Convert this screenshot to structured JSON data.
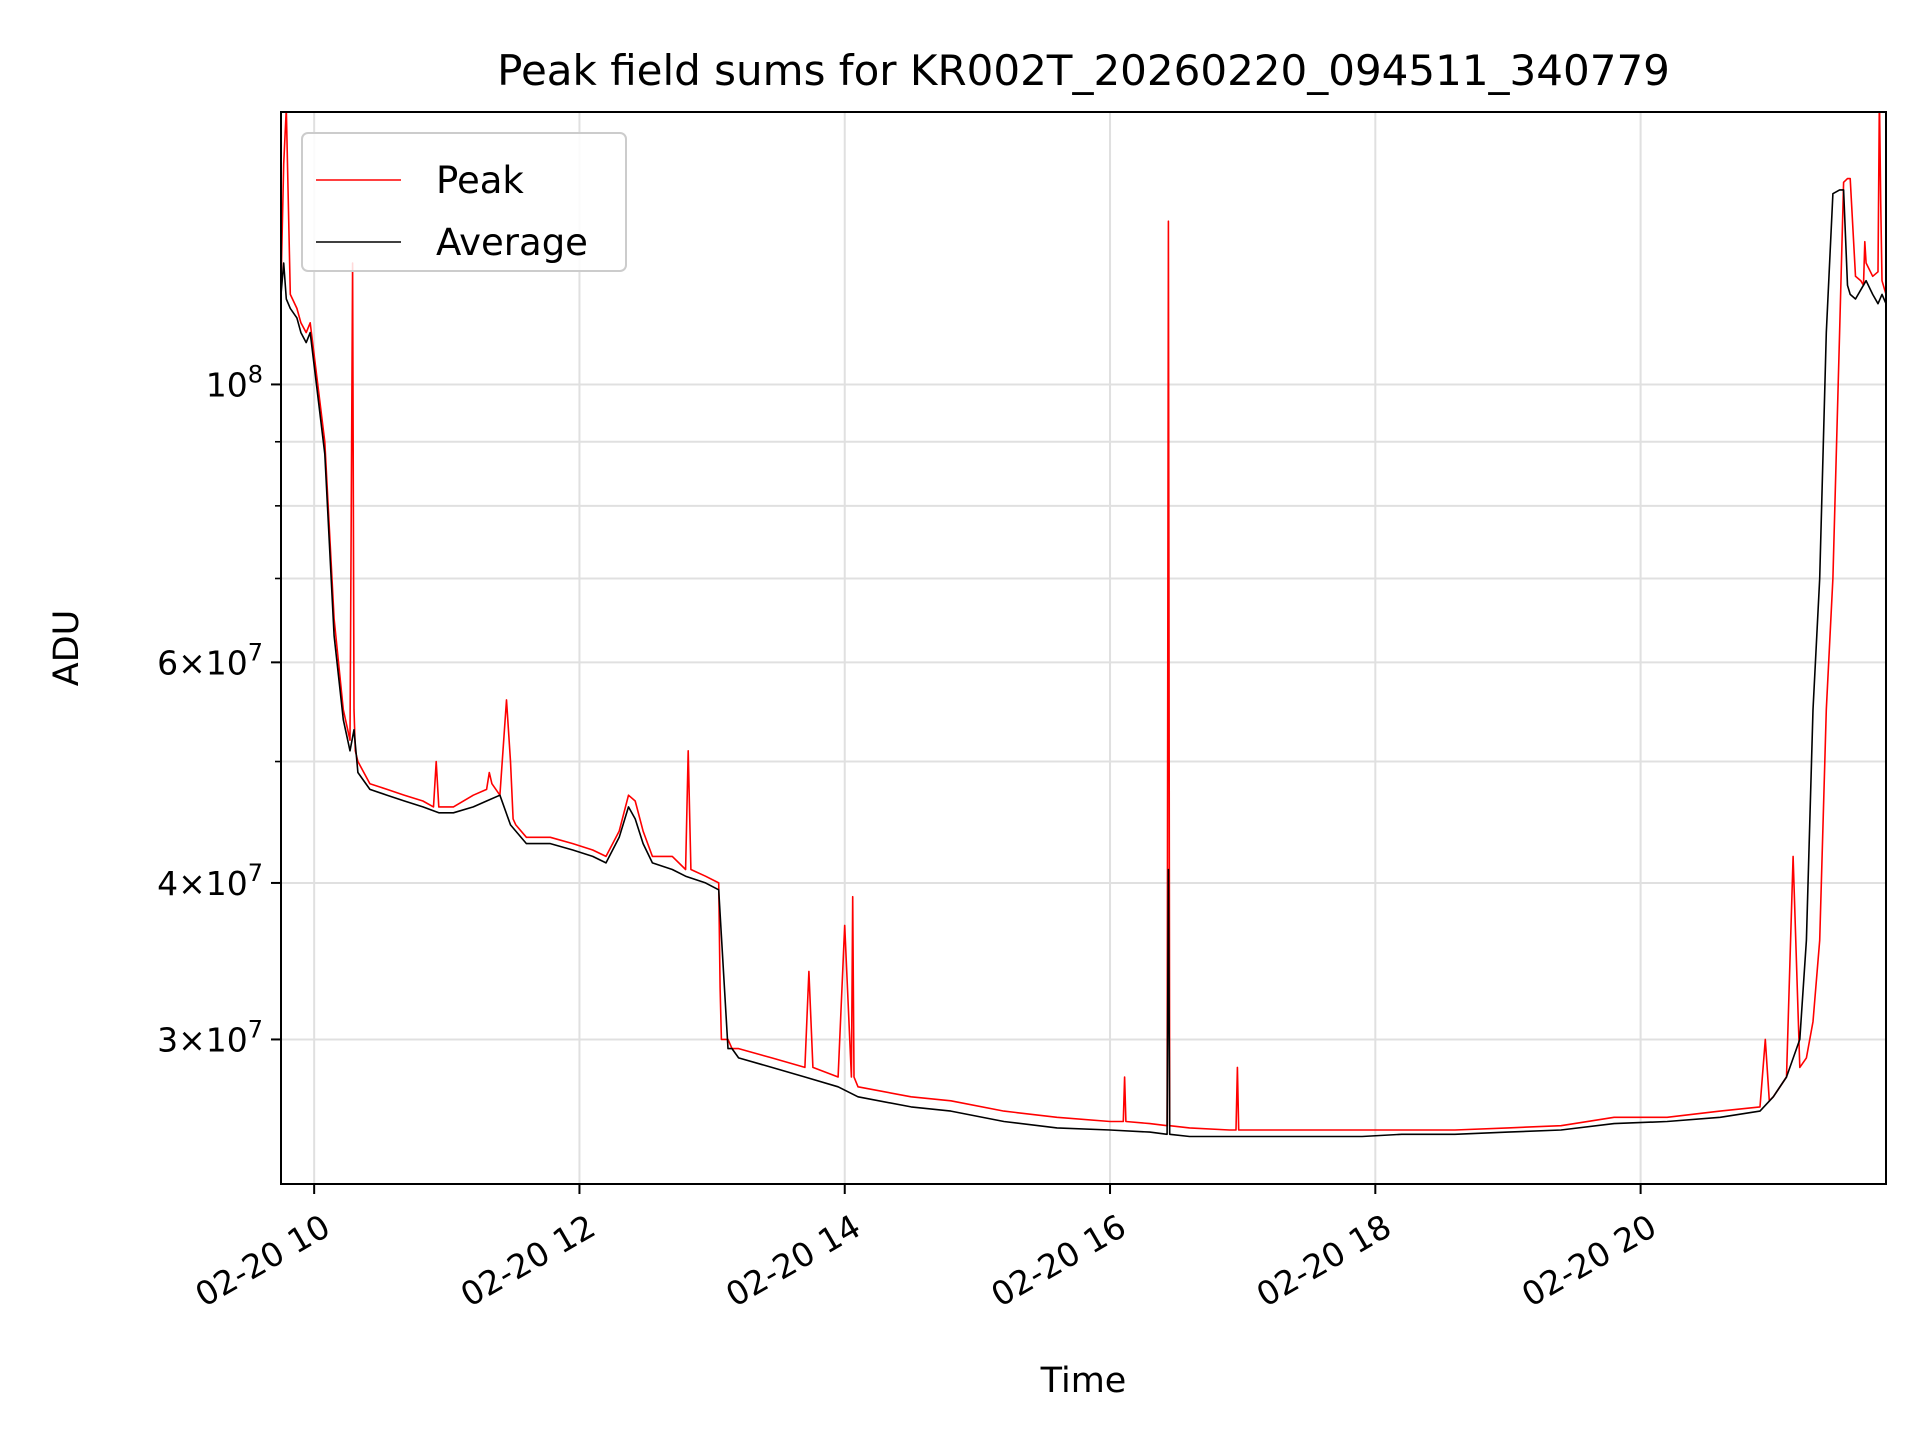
{
  "chart_data": {
    "type": "line",
    "title": "Peak field sums for KR002T_20260220_094511_340779",
    "xlabel": "Time",
    "ylabel": "ADU",
    "x_ticks": [
      "02-20 10",
      "02-20 12",
      "02-20 14",
      "02-20 16",
      "02-20 18",
      "02-20 20"
    ],
    "x_tick_hours": [
      10,
      12,
      14,
      16,
      18,
      20
    ],
    "xlim_hours": [
      9.75,
      21.85
    ],
    "y_scale": "log",
    "ylim": [
      23000000,
      165000000
    ],
    "y_ticks": [
      {
        "value": 30000000,
        "base": "3",
        "exp": "7"
      },
      {
        "value": 40000000,
        "base": "4",
        "exp": "7"
      },
      {
        "value": 60000000,
        "base": "6",
        "exp": "7"
      },
      {
        "value": 100000000,
        "base": "",
        "exp": "8"
      }
    ],
    "y_minor_ticks": [
      50000000,
      70000000,
      80000000,
      90000000,
      200000000
    ],
    "grid": true,
    "legend_position": "top-left",
    "series": [
      {
        "name": "Peak",
        "color": "#ff0000",
        "x_hours": [
          9.75,
          9.77,
          9.79,
          9.82,
          9.87,
          9.9,
          9.94,
          9.97,
          10.08,
          10.15,
          10.22,
          10.27,
          10.29,
          10.3,
          10.31,
          10.33,
          10.42,
          10.55,
          10.68,
          10.82,
          10.9,
          10.92,
          10.94,
          11.05,
          11.2,
          11.3,
          11.32,
          11.34,
          11.4,
          11.45,
          11.48,
          11.5,
          11.52,
          11.6,
          11.78,
          11.95,
          12.1,
          12.2,
          12.3,
          12.37,
          12.42,
          12.48,
          12.55,
          12.7,
          12.8,
          12.82,
          12.84,
          12.95,
          13.05,
          13.06,
          13.07,
          13.12,
          13.15,
          13.2,
          13.45,
          13.7,
          13.73,
          13.76,
          13.95,
          14.0,
          14.05,
          14.06,
          14.07,
          14.1,
          14.5,
          14.8,
          15.2,
          15.6,
          16.0,
          16.1,
          16.11,
          16.12,
          16.3,
          16.43,
          16.44,
          16.45,
          16.6,
          16.9,
          16.95,
          16.96,
          16.97,
          17.2,
          17.6,
          17.9,
          18.2,
          18.6,
          19.0,
          19.4,
          19.8,
          20.2,
          20.6,
          20.9,
          20.94,
          20.97,
          21.0,
          21.1,
          21.15,
          21.2,
          21.25,
          21.3,
          21.35,
          21.4,
          21.45,
          21.5,
          21.53,
          21.56,
          21.57,
          21.58,
          21.62,
          21.66,
          21.68,
          21.69,
          21.7,
          21.75,
          21.79,
          21.8,
          21.81,
          21.82,
          21.85
        ],
        "values": [
          120000000,
          150000000,
          166000000,
          118000000,
          115000000,
          112000000,
          110000000,
          112000000,
          90000000,
          65000000,
          55000000,
          52000000,
          125000000,
          55000000,
          51000000,
          50000000,
          48000000,
          47500000,
          47000000,
          46500000,
          46000000,
          50000000,
          46000000,
          46000000,
          47000000,
          47500000,
          49000000,
          48000000,
          47000000,
          56000000,
          50000000,
          45000000,
          44500000,
          43500000,
          43500000,
          43000000,
          42500000,
          42000000,
          44000000,
          47000000,
          46500000,
          44000000,
          42000000,
          42000000,
          41000000,
          51000000,
          41000000,
          40500000,
          40000000,
          33000000,
          30000000,
          30000000,
          29500000,
          29500000,
          29000000,
          28500000,
          34000000,
          28500000,
          28000000,
          37000000,
          28000000,
          39000000,
          28000000,
          27500000,
          27000000,
          26800000,
          26300000,
          26000000,
          25800000,
          25800000,
          28000000,
          25800000,
          25700000,
          25600000,
          135000000,
          25600000,
          25500000,
          25400000,
          25400000,
          28500000,
          25400000,
          25400000,
          25400000,
          25400000,
          25400000,
          25400000,
          25500000,
          25600000,
          26000000,
          26000000,
          26300000,
          26500000,
          30000000,
          26800000,
          27000000,
          28000000,
          42000000,
          28500000,
          29000000,
          31000000,
          36000000,
          55000000,
          70000000,
          110000000,
          145000000,
          146000000,
          146000000,
          146000000,
          122000000,
          121000000,
          120000000,
          130000000,
          125000000,
          122000000,
          123000000,
          170000000,
          140000000,
          121000000,
          118000000
        ]
      },
      {
        "name": "Average",
        "color": "#000000",
        "x_hours": [
          9.75,
          9.77,
          9.79,
          9.82,
          9.87,
          9.9,
          9.94,
          9.97,
          10.08,
          10.15,
          10.22,
          10.27,
          10.3,
          10.33,
          10.42,
          10.55,
          10.68,
          10.82,
          10.94,
          11.05,
          11.2,
          11.3,
          11.4,
          11.48,
          11.52,
          11.6,
          11.78,
          11.95,
          12.1,
          12.2,
          12.3,
          12.37,
          12.42,
          12.48,
          12.55,
          12.7,
          12.8,
          12.95,
          13.05,
          13.12,
          13.15,
          13.2,
          13.45,
          13.7,
          13.95,
          14.1,
          14.5,
          14.8,
          15.2,
          15.6,
          16.0,
          16.3,
          16.43,
          16.44,
          16.45,
          16.6,
          16.9,
          17.2,
          17.6,
          17.9,
          18.2,
          18.6,
          19.0,
          19.4,
          19.8,
          20.2,
          20.6,
          20.9,
          21.0,
          21.1,
          21.2,
          21.25,
          21.3,
          21.35,
          21.4,
          21.45,
          21.5,
          21.53,
          21.56,
          21.58,
          21.62,
          21.66,
          21.7,
          21.75,
          21.79,
          21.82,
          21.85
        ],
        "values": [
          118000000,
          125000000,
          117000000,
          115000000,
          113000000,
          110000000,
          108000000,
          110000000,
          88000000,
          63000000,
          54000000,
          51000000,
          53000000,
          49000000,
          47500000,
          47000000,
          46500000,
          46000000,
          45500000,
          45500000,
          46000000,
          46500000,
          47000000,
          44500000,
          44000000,
          43000000,
          43000000,
          42500000,
          42000000,
          41500000,
          43500000,
          46000000,
          45000000,
          43000000,
          41500000,
          41000000,
          40500000,
          40000000,
          39500000,
          29500000,
          29500000,
          29000000,
          28500000,
          28000000,
          27500000,
          27000000,
          26500000,
          26300000,
          25800000,
          25500000,
          25400000,
          25300000,
          25200000,
          41000000,
          25200000,
          25100000,
          25100000,
          25100000,
          25100000,
          25100000,
          25200000,
          25200000,
          25300000,
          25400000,
          25700000,
          25800000,
          26000000,
          26300000,
          27000000,
          28000000,
          30000000,
          36000000,
          55000000,
          70000000,
          110000000,
          142000000,
          143000000,
          143000000,
          120000000,
          118000000,
          117000000,
          119000000,
          121000000,
          118000000,
          116000000,
          118000000,
          116000000
        ]
      }
    ]
  }
}
